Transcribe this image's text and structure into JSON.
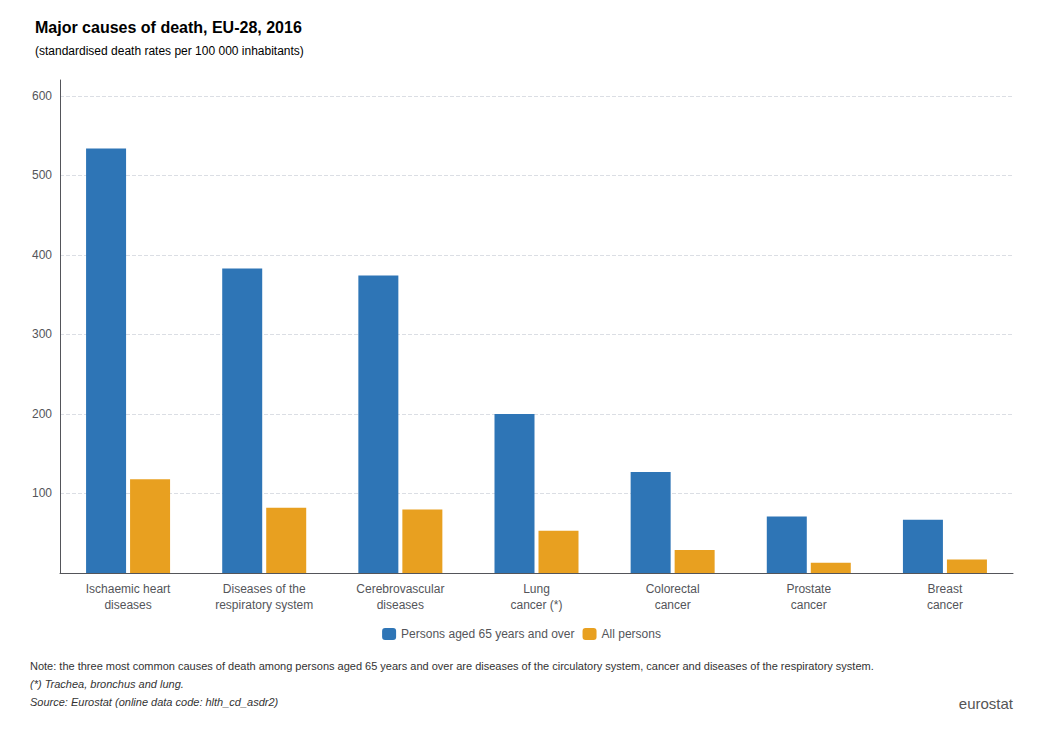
{
  "chart_data": {
    "type": "bar",
    "title": "Major causes of death, EU-28, 2016",
    "subtitle": "(standardised death rates per 100 000 inhabitants)",
    "categories": [
      "Ischaemic heart\ndiseases",
      "Diseases of the\nrespiratory system",
      "Cerebrovascular\ndiseases",
      "Lung\ncancer (*)",
      "Colorectal\ncancer",
      "Prostate\ncancer",
      "Breast\ncancer"
    ],
    "series": [
      {
        "name": "Persons aged 65 years and over",
        "color": "#2E75B6",
        "values": [
          534,
          383,
          374,
          200,
          127,
          71,
          67
        ]
      },
      {
        "name": "All persons",
        "color": "#E8A020",
        "values": [
          118,
          82,
          80,
          53,
          29,
          13,
          17
        ]
      }
    ],
    "ylim": [
      0,
      620
    ],
    "yticks": [
      100,
      200,
      300,
      400,
      500,
      600
    ],
    "grid": true,
    "legend": "bottom",
    "notes": [
      "Note: the three most common causes of death among persons aged 65 years and over are diseases of the circulatory system, cancer and diseases of the respiratory system.",
      "(*) Trachea, bronchus and lung.",
      "Source: Eurostat (online data code: hlth_cd_asdr2)"
    ],
    "annotations": [
      "eurostat"
    ]
  }
}
